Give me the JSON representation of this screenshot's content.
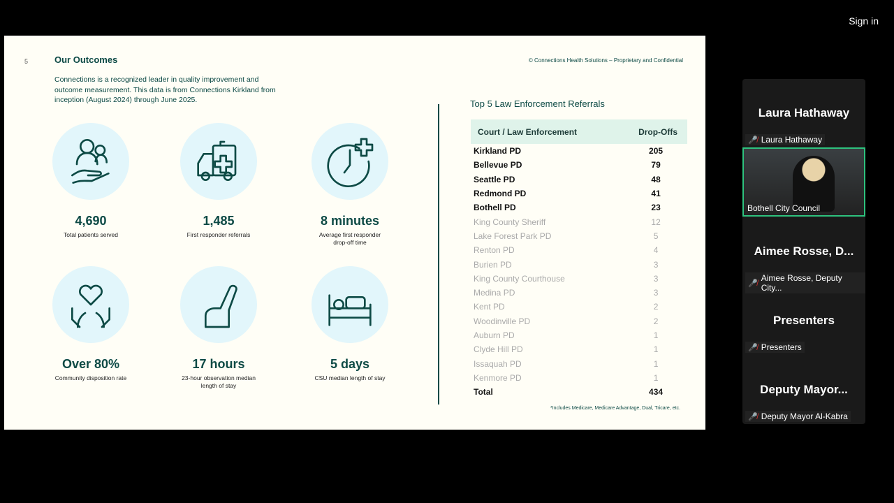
{
  "app": {
    "sign_in": "Sign in"
  },
  "slide": {
    "page_number": "5",
    "title": "Our Outcomes",
    "intro": "Connections is a recognized leader in quality improvement and outcome measurement. This data is from Connections Kirkland from inception (August 2024) through June 2025.",
    "copyright": "© Connections Health Solutions – Proprietary and Confidential",
    "stats": [
      {
        "icon": "hand-people-icon",
        "value": "4,690",
        "label": "Total patients served"
      },
      {
        "icon": "ambulance-icon",
        "value": "1,485",
        "label": "First responder referrals"
      },
      {
        "icon": "clock-plus-icon",
        "value": "8 minutes",
        "label": "Average first responder drop-off time"
      },
      {
        "icon": "heart-hands-icon",
        "value": "Over 80%",
        "label": "Community disposition rate"
      },
      {
        "icon": "recliner-icon",
        "value": "17 hours",
        "label": "23-hour observation median length of stay"
      },
      {
        "icon": "bed-icon",
        "value": "5 days",
        "label": "CSU median length of stay"
      }
    ],
    "table": {
      "title": "Top 5 Law Enforcement Referrals",
      "headers": [
        "Court / Law Enforcement",
        "Drop-Offs"
      ],
      "rows": [
        [
          "Kirkland PD",
          "205"
        ],
        [
          "Bellevue PD",
          "79"
        ],
        [
          "Seattle PD",
          "48"
        ],
        [
          "Redmond PD",
          "41"
        ],
        [
          "Bothell PD",
          "23"
        ],
        [
          "King County Sheriff",
          "12"
        ],
        [
          "Lake Forest Park PD",
          "5"
        ],
        [
          "Renton PD",
          "4"
        ],
        [
          "Burien PD",
          "3"
        ],
        [
          "King County Courthouse",
          "3"
        ],
        [
          "Medina PD",
          "3"
        ],
        [
          "Kent PD",
          "2"
        ],
        [
          "Woodinville PD",
          "2"
        ],
        [
          "Auburn PD",
          "1"
        ],
        [
          "Clyde Hill PD",
          "1"
        ],
        [
          "Issaquah PD",
          "1"
        ],
        [
          "Kenmore PD",
          "1"
        ]
      ],
      "total": [
        "Total",
        "434"
      ]
    },
    "footnote": "*Includes Medicare, Medicare Advantage, Dual, Tricare, etc."
  },
  "participants": [
    {
      "name": "Laura Hathaway",
      "label": "Laura Hathaway"
    },
    {
      "video_label": "Bothell City Council"
    },
    {
      "name": "Aimee Rosse, D...",
      "label": "Aimee Rosse, Deputy City..."
    },
    {
      "name": "Presenters",
      "label": "Presenters"
    },
    {
      "name": "Deputy Mayor...",
      "label": "Deputy Mayor Al-Kabra"
    }
  ],
  "colors": {
    "brand": "#0d4a45",
    "circle": "#e2f6fb",
    "header": "#dff3ea",
    "active_border": "#2ec27e",
    "muted_mic": "#e03030"
  }
}
